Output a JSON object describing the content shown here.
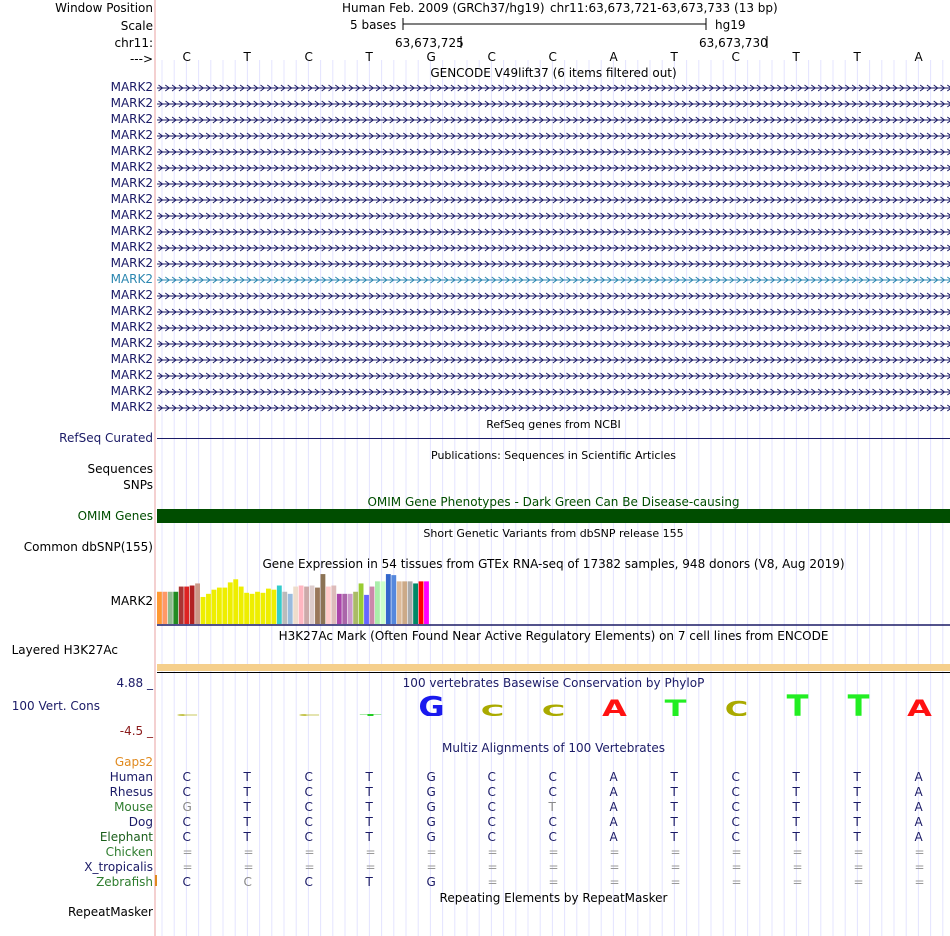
{
  "colors": {
    "navy": "#1a1a66",
    "highlight": "#2b86b0",
    "omim": "#004d00",
    "gtex_line": "#1a1a66",
    "h3k27ac": "#f5cf8c",
    "gaps": "#e08a1f",
    "cons_max": "#1a1a66",
    "cons_min": "#8a1a1a",
    "pink_line": "#e8a0a0"
  },
  "header": {
    "window_position_label": "Window Position",
    "scale_label": "Scale",
    "chr_label": "chr11:",
    "arrow_label": "--->",
    "assembly_text": "Human Feb. 2009 (GRCh37/hg19)",
    "position_text": "chr11:63,673,721-63,673,733 (13 bp)",
    "scale_text": "5 bases",
    "scale_db": "hg19",
    "pos_tick_1": "63,673,725",
    "pos_tick_2": "63,673,730"
  },
  "bases": [
    "C",
    "T",
    "C",
    "T",
    "G",
    "C",
    "C",
    "A",
    "T",
    "C",
    "T",
    "T",
    "A"
  ],
  "gencode": {
    "title": "GENCODE V49lift37 (6 items filtered out)",
    "items": [
      "MARK2",
      "MARK2",
      "MARK2",
      "MARK2",
      "MARK2",
      "MARK2",
      "MARK2",
      "MARK2",
      "MARK2",
      "MARK2",
      "MARK2",
      "MARK2",
      "MARK2",
      "MARK2",
      "MARK2",
      "MARK2",
      "MARK2",
      "MARK2",
      "MARK2",
      "MARK2",
      "MARK2"
    ],
    "highlighted_index": 12
  },
  "refseq": {
    "label": "RefSeq Curated",
    "title": "RefSeq genes from NCBI"
  },
  "sequences": {
    "label": "Sequences",
    "title": "Publications: Sequences in Scientific Articles"
  },
  "snps": {
    "label": "SNPs"
  },
  "omim": {
    "label": "OMIM Genes",
    "title": "OMIM Gene Phenotypes - Dark Green Can Be Disease-causing"
  },
  "dbsnp": {
    "label": "Common dbSNP(155)",
    "title": "Short Genetic Variants from dbSNP release 155"
  },
  "gtex": {
    "title": "Gene Expression in 54 tissues from GTEx RNA-seq of 17382 samples, 948 donors (V8, Aug 2019)",
    "label": "MARK2",
    "bars": [
      {
        "color": "#ff9933",
        "value": 0.62
      },
      {
        "color": "#ff9966",
        "value": 0.62
      },
      {
        "color": "#8fbc8f",
        "value": 0.62
      },
      {
        "color": "#228b22",
        "value": 0.62
      },
      {
        "color": "#aa3333",
        "value": 0.72
      },
      {
        "color": "#dd2222",
        "value": 0.72
      },
      {
        "color": "#b22222",
        "value": 0.74
      },
      {
        "color": "#cc9988",
        "value": 0.78
      },
      {
        "color": "#eeee00",
        "value": 0.52
      },
      {
        "color": "#eeee00",
        "value": 0.58
      },
      {
        "color": "#eeee00",
        "value": 0.66
      },
      {
        "color": "#eeee00",
        "value": 0.7
      },
      {
        "color": "#eeee00",
        "value": 0.7
      },
      {
        "color": "#eeee00",
        "value": 0.8
      },
      {
        "color": "#eeee00",
        "value": 0.86
      },
      {
        "color": "#eeee00",
        "value": 0.72
      },
      {
        "color": "#eeee00",
        "value": 0.6
      },
      {
        "color": "#eeee00",
        "value": 0.58
      },
      {
        "color": "#eeee00",
        "value": 0.62
      },
      {
        "color": "#eeee00",
        "value": 0.6
      },
      {
        "color": "#eeee00",
        "value": 0.68
      },
      {
        "color": "#eeee00",
        "value": 0.66
      },
      {
        "color": "#33cccc",
        "value": 0.74
      },
      {
        "color": "#bbbbbb",
        "value": 0.62
      },
      {
        "color": "#99bbdd",
        "value": 0.58
      },
      {
        "color": "#eeddcc",
        "value": 0.72
      },
      {
        "color": "#ffb6c1",
        "value": 0.74
      },
      {
        "color": "#ccaaaa",
        "value": 0.72
      },
      {
        "color": "#ddcccc",
        "value": 0.74
      },
      {
        "color": "#99775a",
        "value": 0.7
      },
      {
        "color": "#8b7355",
        "value": 0.96
      },
      {
        "color": "#ffcccc",
        "value": 0.72
      },
      {
        "color": "#ddbbbb",
        "value": 0.74
      },
      {
        "color": "#aa44aa",
        "value": 0.58
      },
      {
        "color": "#aa66aa",
        "value": 0.58
      },
      {
        "color": "#cc99cc",
        "value": 0.58
      },
      {
        "color": "#aabb66",
        "value": 0.62
      },
      {
        "color": "#99cc33",
        "value": 0.78
      },
      {
        "color": "#6666ff",
        "value": 0.56
      },
      {
        "color": "#cc88aa",
        "value": 0.72
      },
      {
        "color": "#aaeeaa",
        "value": 0.82
      },
      {
        "color": "#ccffcc",
        "value": 0.82
      },
      {
        "color": "#3366cc",
        "value": 0.96
      },
      {
        "color": "#5588dd",
        "value": 0.94
      },
      {
        "color": "#ddbb99",
        "value": 0.82
      },
      {
        "color": "#ccaa88",
        "value": 0.82
      },
      {
        "color": "#aaaaaa",
        "value": 0.82
      },
      {
        "color": "#008866",
        "value": 0.78
      },
      {
        "color": "#ff0000",
        "value": 0.82
      },
      {
        "color": "#ff00ff",
        "value": 0.82
      }
    ]
  },
  "h3k27ac": {
    "label": "Layered H3K27Ac",
    "title": "H3K27Ac Mark (Often Found Near Active Regulatory Elements) on 7 cell lines from ENCODE"
  },
  "conservation": {
    "label": "100 Vert. Cons",
    "title": "100 vertebrates Basewise Conservation by PhyloP",
    "max_label": "4.88 _",
    "min_label": "-4.5 _",
    "logo": [
      {
        "base": "C",
        "color": "#bbbb33",
        "height": 0.04
      },
      {
        "base": "T",
        "color": "#22cc22",
        "height": 0.0
      },
      {
        "base": "C",
        "color": "#bbbb33",
        "height": 0.04
      },
      {
        "base": "T",
        "color": "#22cc22",
        "height": 0.04
      },
      {
        "base": "G",
        "color": "#1a1aee",
        "height": 0.95
      },
      {
        "base": "C",
        "color": "#aaaa00",
        "height": 0.55
      },
      {
        "base": "C",
        "color": "#aaaa00",
        "height": 0.55
      },
      {
        "base": "A",
        "color": "#ff1111",
        "height": 0.75
      },
      {
        "base": "T",
        "color": "#22ee22",
        "height": 0.75
      },
      {
        "base": "C",
        "color": "#aaaa00",
        "height": 0.7
      },
      {
        "base": "T",
        "color": "#22ee22",
        "height": 1.0
      },
      {
        "base": "T",
        "color": "#22ee22",
        "height": 1.0
      },
      {
        "base": "A",
        "color": "#ff1111",
        "height": 0.75
      }
    ]
  },
  "multiz": {
    "title": "Multiz Alignments of 100 Vertebrates",
    "gaps_label": "Gaps2",
    "species": [
      {
        "name": "Human",
        "color": "#1a1a66",
        "bases": [
          "C",
          "T",
          "C",
          "T",
          "G",
          "C",
          "C",
          "A",
          "T",
          "C",
          "T",
          "T",
          "A"
        ]
      },
      {
        "name": "Rhesus",
        "color": "#1a1a66",
        "bases": [
          "C",
          "T",
          "C",
          "T",
          "G",
          "C",
          "C",
          "A",
          "T",
          "C",
          "T",
          "T",
          "A"
        ]
      },
      {
        "name": "Mouse",
        "color": "#2e7d2e",
        "bases": [
          "G",
          "T",
          "C",
          "T",
          "G",
          "C",
          "T",
          "A",
          "T",
          "C",
          "T",
          "T",
          "A"
        ]
      },
      {
        "name": "Dog",
        "color": "#1a1a66",
        "bases": [
          "C",
          "T",
          "C",
          "T",
          "G",
          "C",
          "C",
          "A",
          "T",
          "C",
          "T",
          "T",
          "A"
        ]
      },
      {
        "name": "Elephant",
        "color": "#1a5e1a",
        "bases": [
          "C",
          "T",
          "C",
          "T",
          "G",
          "C",
          "C",
          "A",
          "T",
          "C",
          "T",
          "T",
          "A"
        ]
      },
      {
        "name": "Chicken",
        "color": "#2e7d2e",
        "bases": [
          "=",
          "=",
          "=",
          "=",
          "=",
          "=",
          "=",
          "=",
          "=",
          "=",
          "=",
          "=",
          "="
        ]
      },
      {
        "name": "X_tropicalis",
        "color": "#1a1a66",
        "bases": [
          "=",
          "=",
          "=",
          "=",
          "=",
          "=",
          "=",
          "=",
          "=",
          "=",
          "=",
          "=",
          "="
        ]
      },
      {
        "name": "Zebrafish",
        "color": "#2e7d2e",
        "bases": [
          "C",
          "C",
          "C",
          "T",
          "G",
          "=",
          "=",
          "=",
          "=",
          "=",
          "=",
          "=",
          "="
        ]
      }
    ],
    "mismatch_color": "#888888"
  },
  "repeatmasker": {
    "label": "RepeatMasker",
    "title": "Repeating Elements by RepeatMasker"
  }
}
